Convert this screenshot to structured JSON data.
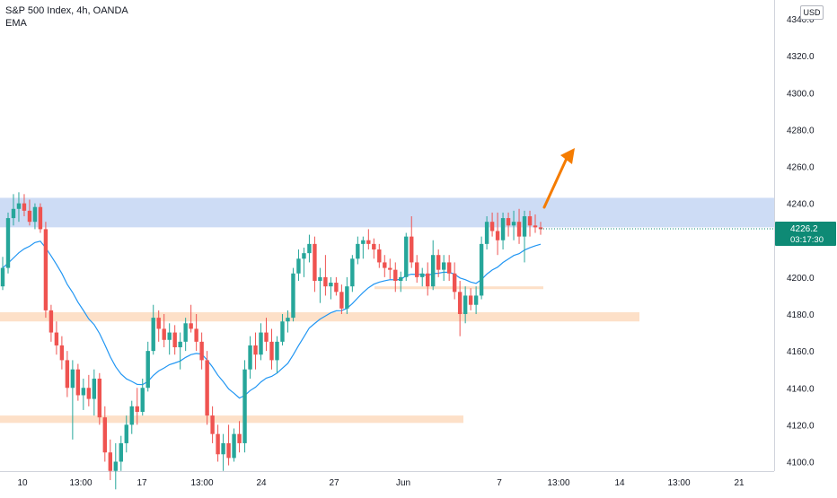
{
  "header": {
    "title": "S&P 500 Index, 4h, OANDA",
    "indicator": "EMA"
  },
  "currency_label": "USD",
  "price_tag": {
    "price": "4226.2",
    "countdown": "03:17:30"
  },
  "colors": {
    "up": "#26a69a",
    "down": "#ef5350",
    "ema": "#2196f3",
    "resistance_zone": "#cddcf5",
    "support_zone": "#fde0c8",
    "arrow": "#f57c00",
    "price_tag": "#0e8a75"
  },
  "chart_data": {
    "type": "candlestick",
    "title": "S&P 500 Index, 4h, OANDA",
    "y_ticks": [
      "4340.0",
      "4320.0",
      "4300.0",
      "4280.0",
      "4260.0",
      "4240.0",
      "4200.0",
      "4180.0",
      "4160.0",
      "4140.0",
      "4120.0",
      "4100.0"
    ],
    "x_ticks": [
      "10",
      "13:00",
      "17",
      "13:00",
      "24",
      "27",
      "Jun",
      "7",
      "13:00",
      "14",
      "13:00",
      "21"
    ],
    "ylim": [
      4096,
      4350
    ],
    "last_price": 4226.2,
    "zones": [
      {
        "kind": "resistance",
        "low": 4227,
        "high": 4243
      },
      {
        "kind": "support",
        "low": 4176,
        "high": 4181
      },
      {
        "kind": "support",
        "low": 4193.5,
        "high": 4195
      },
      {
        "kind": "support",
        "low": 4121,
        "high": 4125
      }
    ],
    "candles": [
      {
        "o": 4195,
        "h": 4211,
        "l": 4193,
        "c": 4205
      },
      {
        "o": 4205,
        "h": 4235,
        "l": 4202,
        "c": 4232
      },
      {
        "o": 4232,
        "h": 4245,
        "l": 4228,
        "c": 4237
      },
      {
        "o": 4237,
        "h": 4246,
        "l": 4230,
        "c": 4240
      },
      {
        "o": 4240,
        "h": 4245,
        "l": 4233,
        "c": 4236
      },
      {
        "o": 4236,
        "h": 4242,
        "l": 4228,
        "c": 4230
      },
      {
        "o": 4230,
        "h": 4240,
        "l": 4226,
        "c": 4238
      },
      {
        "o": 4238,
        "h": 4240,
        "l": 4224,
        "c": 4226
      },
      {
        "o": 4226,
        "h": 4230,
        "l": 4178,
        "c": 4182
      },
      {
        "o": 4182,
        "h": 4185,
        "l": 4165,
        "c": 4170
      },
      {
        "o": 4170,
        "h": 4176,
        "l": 4158,
        "c": 4163
      },
      {
        "o": 4163,
        "h": 4168,
        "l": 4150,
        "c": 4155
      },
      {
        "o": 4155,
        "h": 4160,
        "l": 4135,
        "c": 4140
      },
      {
        "o": 4140,
        "h": 4155,
        "l": 4112,
        "c": 4150
      },
      {
        "o": 4150,
        "h": 4153,
        "l": 4133,
        "c": 4136
      },
      {
        "o": 4136,
        "h": 4145,
        "l": 4128,
        "c": 4140
      },
      {
        "o": 4140,
        "h": 4147,
        "l": 4130,
        "c": 4134
      },
      {
        "o": 4134,
        "h": 4150,
        "l": 4125,
        "c": 4145
      },
      {
        "o": 4145,
        "h": 4148,
        "l": 4120,
        "c": 4124
      },
      {
        "o": 4124,
        "h": 4130,
        "l": 4100,
        "c": 4105
      },
      {
        "o": 4105,
        "h": 4112,
        "l": 4090,
        "c": 4095
      },
      {
        "o": 4095,
        "h": 4110,
        "l": 4085,
        "c": 4100
      },
      {
        "o": 4100,
        "h": 4114,
        "l": 4095,
        "c": 4110
      },
      {
        "o": 4110,
        "h": 4125,
        "l": 4105,
        "c": 4120
      },
      {
        "o": 4120,
        "h": 4133,
        "l": 4115,
        "c": 4130
      },
      {
        "o": 4130,
        "h": 4140,
        "l": 4120,
        "c": 4127
      },
      {
        "o": 4127,
        "h": 4145,
        "l": 4125,
        "c": 4140
      },
      {
        "o": 4140,
        "h": 4165,
        "l": 4138,
        "c": 4160
      },
      {
        "o": 4160,
        "h": 4185,
        "l": 4158,
        "c": 4178
      },
      {
        "o": 4178,
        "h": 4182,
        "l": 4165,
        "c": 4172
      },
      {
        "o": 4172,
        "h": 4180,
        "l": 4162,
        "c": 4166
      },
      {
        "o": 4166,
        "h": 4175,
        "l": 4158,
        "c": 4170
      },
      {
        "o": 4170,
        "h": 4174,
        "l": 4158,
        "c": 4162
      },
      {
        "o": 4162,
        "h": 4170,
        "l": 4150,
        "c": 4165
      },
      {
        "o": 4165,
        "h": 4178,
        "l": 4160,
        "c": 4175
      },
      {
        "o": 4175,
        "h": 4185,
        "l": 4170,
        "c": 4172
      },
      {
        "o": 4172,
        "h": 4180,
        "l": 4160,
        "c": 4165
      },
      {
        "o": 4165,
        "h": 4170,
        "l": 4150,
        "c": 4155
      },
      {
        "o": 4155,
        "h": 4160,
        "l": 4120,
        "c": 4125
      },
      {
        "o": 4125,
        "h": 4130,
        "l": 4110,
        "c": 4115
      },
      {
        "o": 4115,
        "h": 4120,
        "l": 4100,
        "c": 4104
      },
      {
        "o": 4104,
        "h": 4115,
        "l": 4095,
        "c": 4110
      },
      {
        "o": 4110,
        "h": 4120,
        "l": 4098,
        "c": 4102
      },
      {
        "o": 4102,
        "h": 4118,
        "l": 4100,
        "c": 4115
      },
      {
        "o": 4115,
        "h": 4122,
        "l": 4105,
        "c": 4110
      },
      {
        "o": 4110,
        "h": 4155,
        "l": 4105,
        "c": 4150
      },
      {
        "o": 4150,
        "h": 4168,
        "l": 4145,
        "c": 4163
      },
      {
        "o": 4163,
        "h": 4170,
        "l": 4150,
        "c": 4158
      },
      {
        "o": 4158,
        "h": 4175,
        "l": 4155,
        "c": 4170
      },
      {
        "o": 4170,
        "h": 4178,
        "l": 4160,
        "c": 4165
      },
      {
        "o": 4165,
        "h": 4172,
        "l": 4150,
        "c": 4155
      },
      {
        "o": 4155,
        "h": 4168,
        "l": 4148,
        "c": 4165
      },
      {
        "o": 4165,
        "h": 4180,
        "l": 4163,
        "c": 4176
      },
      {
        "o": 4176,
        "h": 4182,
        "l": 4170,
        "c": 4178
      },
      {
        "o": 4178,
        "h": 4205,
        "l": 4176,
        "c": 4202
      },
      {
        "o": 4202,
        "h": 4215,
        "l": 4198,
        "c": 4210
      },
      {
        "o": 4210,
        "h": 4216,
        "l": 4200,
        "c": 4213
      },
      {
        "o": 4213,
        "h": 4223,
        "l": 4208,
        "c": 4218
      },
      {
        "o": 4218,
        "h": 4222,
        "l": 4192,
        "c": 4198
      },
      {
        "o": 4198,
        "h": 4205,
        "l": 4186,
        "c": 4200
      },
      {
        "o": 4200,
        "h": 4212,
        "l": 4190,
        "c": 4195
      },
      {
        "o": 4195,
        "h": 4200,
        "l": 4188,
        "c": 4197
      },
      {
        "o": 4197,
        "h": 4200,
        "l": 4190,
        "c": 4192
      },
      {
        "o": 4192,
        "h": 4196,
        "l": 4180,
        "c": 4183
      },
      {
        "o": 4183,
        "h": 4200,
        "l": 4180,
        "c": 4195
      },
      {
        "o": 4195,
        "h": 4212,
        "l": 4192,
        "c": 4210
      },
      {
        "o": 4210,
        "h": 4222,
        "l": 4207,
        "c": 4218
      },
      {
        "o": 4218,
        "h": 4222,
        "l": 4210,
        "c": 4220
      },
      {
        "o": 4220,
        "h": 4226,
        "l": 4215,
        "c": 4218
      },
      {
        "o": 4218,
        "h": 4221,
        "l": 4210,
        "c": 4215
      },
      {
        "o": 4215,
        "h": 4218,
        "l": 4205,
        "c": 4208
      },
      {
        "o": 4208,
        "h": 4212,
        "l": 4200,
        "c": 4205
      },
      {
        "o": 4205,
        "h": 4210,
        "l": 4199,
        "c": 4204
      },
      {
        "o": 4204,
        "h": 4208,
        "l": 4192,
        "c": 4198
      },
      {
        "o": 4198,
        "h": 4203,
        "l": 4192,
        "c": 4200
      },
      {
        "o": 4200,
        "h": 4224,
        "l": 4198,
        "c": 4222
      },
      {
        "o": 4222,
        "h": 4233,
        "l": 4205,
        "c": 4208
      },
      {
        "o": 4208,
        "h": 4212,
        "l": 4197,
        "c": 4200
      },
      {
        "o": 4200,
        "h": 4205,
        "l": 4195,
        "c": 4202
      },
      {
        "o": 4202,
        "h": 4208,
        "l": 4190,
        "c": 4195
      },
      {
        "o": 4195,
        "h": 4220,
        "l": 4193,
        "c": 4212
      },
      {
        "o": 4212,
        "h": 4215,
        "l": 4200,
        "c": 4204
      },
      {
        "o": 4204,
        "h": 4212,
        "l": 4198,
        "c": 4208
      },
      {
        "o": 4208,
        "h": 4212,
        "l": 4198,
        "c": 4202
      },
      {
        "o": 4202,
        "h": 4208,
        "l": 4188,
        "c": 4192
      },
      {
        "o": 4192,
        "h": 4198,
        "l": 4168,
        "c": 4180
      },
      {
        "o": 4180,
        "h": 4195,
        "l": 4175,
        "c": 4190
      },
      {
        "o": 4190,
        "h": 4194,
        "l": 4182,
        "c": 4185
      },
      {
        "o": 4185,
        "h": 4195,
        "l": 4180,
        "c": 4190
      },
      {
        "o": 4190,
        "h": 4222,
        "l": 4188,
        "c": 4218
      },
      {
        "o": 4218,
        "h": 4233,
        "l": 4215,
        "c": 4230
      },
      {
        "o": 4230,
        "h": 4235,
        "l": 4222,
        "c": 4225
      },
      {
        "o": 4225,
        "h": 4235,
        "l": 4212,
        "c": 4220
      },
      {
        "o": 4220,
        "h": 4235,
        "l": 4215,
        "c": 4232
      },
      {
        "o": 4232,
        "h": 4235,
        "l": 4222,
        "c": 4228
      },
      {
        "o": 4228,
        "h": 4236,
        "l": 4220,
        "c": 4230
      },
      {
        "o": 4230,
        "h": 4237,
        "l": 4218,
        "c": 4222
      },
      {
        "o": 4222,
        "h": 4236,
        "l": 4208,
        "c": 4233
      },
      {
        "o": 4233,
        "h": 4236,
        "l": 4222,
        "c": 4228
      },
      {
        "o": 4228,
        "h": 4234,
        "l": 4224,
        "c": 4227
      },
      {
        "o": 4227,
        "h": 4230,
        "l": 4223,
        "c": 4226
      }
    ]
  }
}
